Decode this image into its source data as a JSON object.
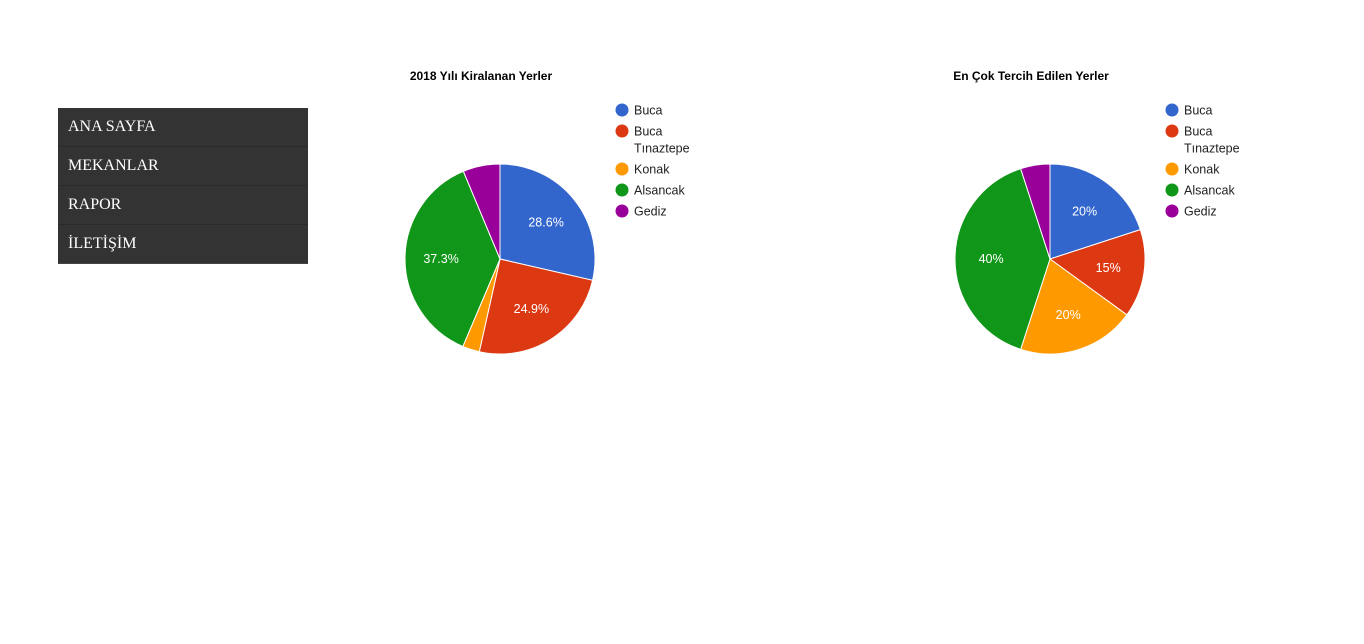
{
  "nav": {
    "items": [
      {
        "label": "ANA SAYFA"
      },
      {
        "label": "MEKANLAR"
      },
      {
        "label": "RAPOR"
      },
      {
        "label": "İLETİŞİM"
      }
    ]
  },
  "chart_data": [
    {
      "type": "pie",
      "title": "2018 Yılı Kiralanan Yerler",
      "legend_position": "right",
      "slices": [
        {
          "name": "Buca",
          "value": 28.6,
          "label": "28.6%",
          "color": "#3366cc"
        },
        {
          "name": "Buca Tınaztepe",
          "value": 24.9,
          "label": "24.9%",
          "color": "#dc3912"
        },
        {
          "name": "Konak",
          "value": 2.9,
          "label": "",
          "color": "#ff9900"
        },
        {
          "name": "Alsancak",
          "value": 37.3,
          "label": "37.3%",
          "color": "#109618"
        },
        {
          "name": "Gediz",
          "value": 6.3,
          "label": "",
          "color": "#990099"
        }
      ]
    },
    {
      "type": "pie",
      "title": "En Çok Tercih Edilen Yerler",
      "legend_position": "right",
      "slices": [
        {
          "name": "Buca",
          "value": 20,
          "label": "20%",
          "color": "#3366cc"
        },
        {
          "name": "Buca Tınaztepe",
          "value": 15,
          "label": "15%",
          "color": "#dc3912"
        },
        {
          "name": "Konak",
          "value": 20,
          "label": "20%",
          "color": "#ff9900"
        },
        {
          "name": "Alsancak",
          "value": 40,
          "label": "40%",
          "color": "#109618"
        },
        {
          "name": "Gediz",
          "value": 5,
          "label": "",
          "color": "#990099"
        }
      ]
    }
  ]
}
